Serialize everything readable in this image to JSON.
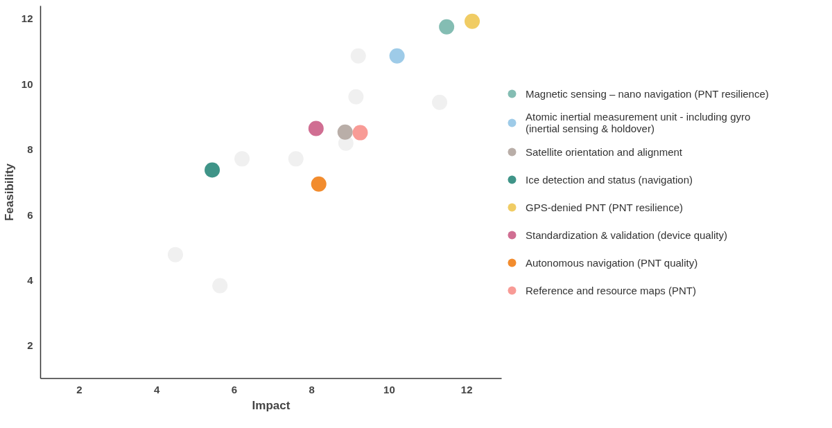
{
  "chart_data": {
    "type": "scatter",
    "xlabel": "Impact",
    "ylabel": "Feasibility",
    "xlim": [
      1,
      12.9
    ],
    "ylim": [
      1,
      12.4
    ],
    "xticks": [
      2,
      4,
      6,
      8,
      10,
      12
    ],
    "yticks": [
      2,
      4,
      6,
      8,
      10,
      12
    ],
    "grid": false,
    "legend": "right",
    "marker": "circle",
    "series": [
      {
        "color": "#f0f0f0",
        "x": [
          9.2,
          9.14,
          11.3,
          6.2,
          7.59,
          8.88,
          4.48,
          5.63
        ],
        "values": [
          10.87,
          9.62,
          9.45,
          7.72,
          7.72,
          8.2,
          4.79,
          3.84
        ]
      },
      {
        "name": "Magnetic sensing – nano navigation (PNT resilience)",
        "color": "#84bdb3",
        "x": [
          11.48
        ],
        "values": [
          11.76
        ]
      },
      {
        "name": "Atomic inertial measurement unit - including gyro (inertial sensing & holdover)",
        "color": "#9ecbe8",
        "x": [
          10.2
        ],
        "values": [
          10.87
        ]
      },
      {
        "name": "Satellite orientation and alignment",
        "color": "#b9aea8",
        "x": [
          8.86
        ],
        "values": [
          8.54
        ]
      },
      {
        "name": "Ice detection and status (navigation)",
        "color": "#3f9488",
        "x": [
          5.43
        ],
        "values": [
          7.38
        ]
      },
      {
        "name": "GPS-denied PNT (PNT resilience)",
        "color": "#f0cc64",
        "x": [
          12.14
        ],
        "values": [
          11.93
        ]
      },
      {
        "name": "Standardization & validation (device quality)",
        "color": "#d06e92",
        "x": [
          8.11
        ],
        "values": [
          8.65
        ]
      },
      {
        "name": "Autonomous navigation (PNT quality)",
        "color": "#f28c2e",
        "x": [
          8.18
        ],
        "values": [
          6.95
        ]
      },
      {
        "name": "Reference and resource maps (PNT)",
        "color": "#f89b96",
        "x": [
          9.25
        ],
        "values": [
          8.52
        ]
      }
    ]
  }
}
